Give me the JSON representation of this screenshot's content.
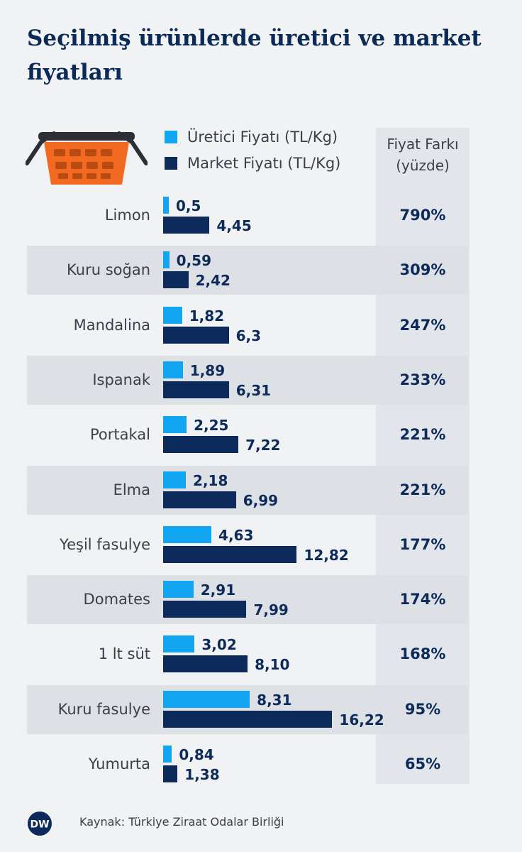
{
  "title": "Seçilmiş ürünlerde üretici ve market fiyatları",
  "legend": {
    "producer": "Üretici Fiyatı (TL/Kg)",
    "market": "Market Fiyatı (TL/Kg)"
  },
  "ratio_header_line1": "Fiyat Farkı",
  "ratio_header_line2": "(yüzde)",
  "source": "Kaynak: Türkiye Ziraat Odalar Birliği",
  "logo_text": "DW",
  "colors": {
    "producer": "#12a6f2",
    "market": "#0c2a5a",
    "basket": "#f26a21"
  },
  "icons": [
    "shopping-basket-icon",
    "dw-logo-icon"
  ],
  "chart_data": {
    "type": "bar",
    "orientation": "horizontal",
    "categories": [
      "Limon",
      "Kuru soğan",
      "Mandalina",
      "Ispanak",
      "Portakal",
      "Elma",
      "Yeşil fasulye",
      "Domates",
      "1 lt süt",
      "Kuru fasulye",
      "Yumurta"
    ],
    "series": [
      {
        "name": "Üretici Fiyatı (TL/Kg)",
        "values": [
          0.5,
          0.59,
          1.82,
          1.89,
          2.25,
          2.18,
          4.63,
          2.91,
          3.02,
          8.31,
          0.84
        ],
        "labels": [
          "0,5",
          "0,59",
          "1,82",
          "1,89",
          "2,25",
          "2,18",
          "4,63",
          "2,91",
          "3,02",
          "8,31",
          "0,84"
        ]
      },
      {
        "name": "Market Fiyatı (TL/Kg)",
        "values": [
          4.45,
          2.42,
          6.3,
          6.31,
          7.22,
          6.99,
          12.82,
          7.99,
          8.1,
          16.22,
          1.38
        ],
        "labels": [
          "4,45",
          "2,42",
          "6,3",
          "6,31",
          "7,22",
          "6,99",
          "12,82",
          "7,99",
          "8,10",
          "16,22",
          "1,38"
        ]
      }
    ],
    "price_difference_percent": [
      "790%",
      "309%",
      "247%",
      "233%",
      "221%",
      "221%",
      "177%",
      "174%",
      "168%",
      "95%",
      "65%"
    ],
    "xlim": [
      0,
      16.22
    ],
    "grid": false,
    "legend_position": "top"
  }
}
